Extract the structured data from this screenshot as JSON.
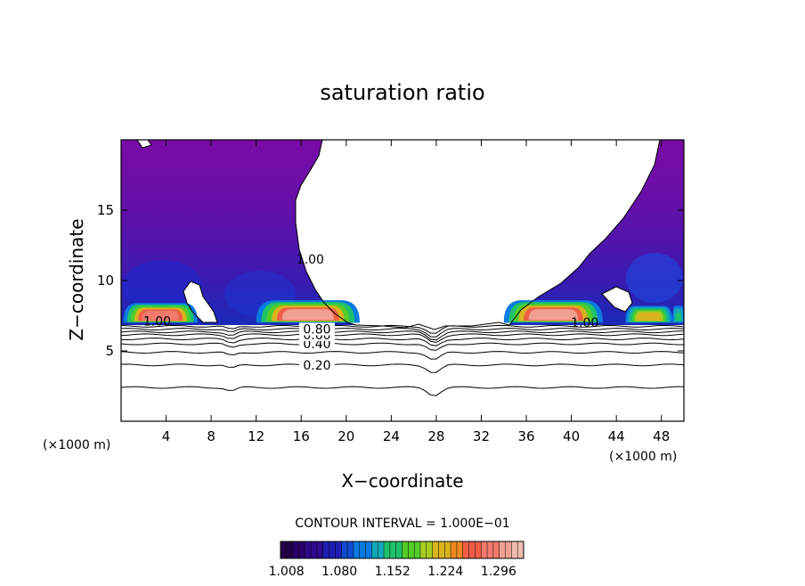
{
  "chart_data": {
    "type": "heatmap",
    "title": "saturation ratio",
    "xlabel": "X−coordinate",
    "ylabel": "Z−coordinate",
    "x_unit_left": "(×1000 m)",
    "x_unit_right": "(×1000 m)",
    "xlim": [
      0,
      50
    ],
    "ylim": [
      0,
      20
    ],
    "x_ticks": [
      4,
      8,
      12,
      16,
      20,
      24,
      28,
      32,
      36,
      40,
      44,
      48
    ],
    "y_ticks": [
      5,
      10,
      15
    ],
    "contour_interval_text": "CONTOUR INTERVAL = 1.000E−01",
    "contour_lines": [
      {
        "level": 0.1,
        "z": 2.4,
        "label": ""
      },
      {
        "level": 0.2,
        "z": 4.0,
        "label": "0.20"
      },
      {
        "level": 0.3,
        "z": 4.9,
        "label": ""
      },
      {
        "level": 0.4,
        "z": 5.5,
        "label": "0.40"
      },
      {
        "level": 0.5,
        "z": 5.85,
        "label": ""
      },
      {
        "level": 0.6,
        "z": 6.15,
        "label": "0.60"
      },
      {
        "level": 0.7,
        "z": 6.35,
        "label": ""
      },
      {
        "level": 0.8,
        "z": 6.55,
        "label": "0.80"
      },
      {
        "level": 0.9,
        "z": 6.75,
        "label": ""
      }
    ],
    "one_labels": [
      {
        "x": 3.2,
        "z": 6.8,
        "text": "1.00"
      },
      {
        "x": 16.8,
        "z": 11.2,
        "text": "1.00"
      },
      {
        "x": 41.2,
        "z": 6.7,
        "text": "1.00"
      }
    ],
    "supersaturated_regions": [
      {
        "x_start": 0.2,
        "x_end": 6.8,
        "z_base": 7.0,
        "z_top": 8.4,
        "peak": 1.29
      },
      {
        "x_start": 12.0,
        "x_end": 21.2,
        "z_base": 7.0,
        "z_top": 8.6,
        "peak": 1.3
      },
      {
        "x_start": 34.0,
        "x_end": 42.8,
        "z_base": 7.0,
        "z_top": 8.6,
        "peak": 1.3
      },
      {
        "x_start": 44.8,
        "x_end": 49.0,
        "z_base": 7.0,
        "z_top": 8.2,
        "peak": 1.22
      },
      {
        "x_start": 49.0,
        "x_end": 50.0,
        "z_base": 7.0,
        "z_top": 8.2,
        "peak": 1.15
      }
    ],
    "colorbar": {
      "min": 1.0,
      "max": 1.33,
      "tick_values": [
        1.008,
        1.08,
        1.152,
        1.224,
        1.296
      ],
      "tick_labels": [
        "1.008",
        "1.080",
        "1.152",
        "1.224",
        "1.296"
      ],
      "colors": [
        "#24004a",
        "#2a0068",
        "#2e0a8c",
        "#1d1fb4",
        "#0f4ad0",
        "#0a7ae0",
        "#12aab8",
        "#1ec26a",
        "#54cc2a",
        "#a8cc22",
        "#d8b41e",
        "#ee8a22",
        "#f05e46",
        "#f07a6e",
        "#f0a090",
        "#f0bcb0"
      ]
    }
  }
}
